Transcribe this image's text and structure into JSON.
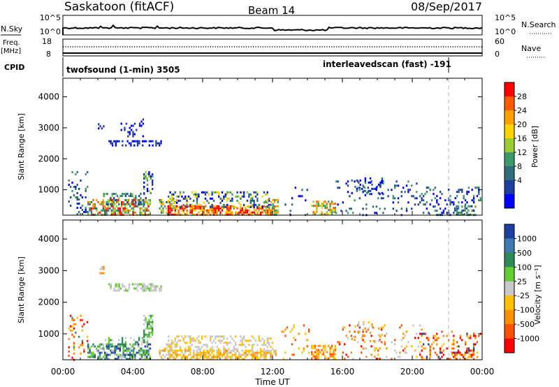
{
  "header": {
    "station": "Saskatoon (fitACF)",
    "beam": "Beam 14",
    "date": "08/Sep/2017"
  },
  "summary_panel": {
    "left_top_label": "N.Sky",
    "left_top_ticks": [
      "10^5",
      "10^0"
    ],
    "right_top_ticks": [
      "10^5",
      "10^0"
    ],
    "right_top_label": "N.Search",
    "freq_label_1": "Freq.",
    "freq_label_2": "[MHz]",
    "freq_ticks": [
      "18",
      "8"
    ],
    "nave_ticks": [
      "60",
      "0"
    ],
    "nave_label": "Nave",
    "cpid_label": "CPID",
    "cpid_1": "twofsound (1-min) 3505",
    "cpid_2": "interleavedscan (fast) -191"
  },
  "chart_data": [
    {
      "type": "heatmap",
      "name": "power",
      "ylabel": "Slant Range [km]",
      "xlabel": "",
      "y_ticks": [
        1000,
        2000,
        3000,
        4000
      ],
      "ylim": [
        180,
        4600
      ],
      "x_hours": [
        0,
        24
      ],
      "colorbar": {
        "label": "Power [dB]",
        "ticks": [
          "28",
          "24",
          "20",
          "16",
          "12",
          "8",
          "4"
        ],
        "colors": [
          "#ff0000",
          "#ff5a00",
          "#ffa000",
          "#ffd200",
          "#9acd32",
          "#3c9a6a",
          "#2e6e7a",
          "#1f3fa0",
          "#0000ff"
        ]
      },
      "patches": [
        {
          "t0": 0.3,
          "t1": 1.4,
          "r0": 200,
          "r1": 1600,
          "density": 0.18,
          "palette": [
            6,
            7,
            8,
            5
          ]
        },
        {
          "t0": 1.4,
          "t1": 5.0,
          "r0": 200,
          "r1": 700,
          "density": 0.6,
          "palette": [
            0,
            1,
            2,
            4,
            5,
            6
          ]
        },
        {
          "t0": 2.3,
          "t1": 4.8,
          "r0": 500,
          "r1": 900,
          "density": 0.35,
          "palette": [
            4,
            5,
            6,
            7
          ]
        },
        {
          "t0": 4.6,
          "t1": 5.1,
          "r0": 900,
          "r1": 1600,
          "density": 0.4,
          "palette": [
            4,
            5,
            7,
            8
          ]
        },
        {
          "t0": 2.0,
          "t1": 2.3,
          "r0": 2950,
          "r1": 3150,
          "density": 0.4,
          "palette": [
            7,
            8
          ]
        },
        {
          "t0": 2.6,
          "t1": 5.6,
          "r0": 2400,
          "r1": 2600,
          "density": 0.55,
          "palette": [
            7,
            8
          ]
        },
        {
          "t0": 3.3,
          "t1": 4.6,
          "r0": 2700,
          "r1": 3300,
          "density": 0.15,
          "palette": [
            7,
            8
          ]
        },
        {
          "t0": 5.5,
          "t1": 6.5,
          "r0": 200,
          "r1": 700,
          "density": 0.4,
          "palette": [
            2,
            4,
            5,
            6
          ]
        },
        {
          "t0": 6.0,
          "t1": 12.2,
          "r0": 200,
          "r1": 500,
          "density": 0.65,
          "palette": [
            0,
            0,
            1,
            2,
            3
          ]
        },
        {
          "t0": 6.0,
          "t1": 12.0,
          "r0": 450,
          "r1": 950,
          "density": 0.35,
          "palette": [
            4,
            5,
            6,
            7,
            8,
            3
          ]
        },
        {
          "t0": 11.5,
          "t1": 12.3,
          "r0": 200,
          "r1": 700,
          "density": 0.4,
          "palette": [
            2,
            4,
            5
          ]
        },
        {
          "t0": 12.5,
          "t1": 14.2,
          "r0": 200,
          "r1": 1300,
          "density": 0.06,
          "palette": [
            7,
            8,
            6
          ]
        },
        {
          "t0": 14.2,
          "t1": 15.6,
          "r0": 200,
          "r1": 650,
          "density": 0.55,
          "palette": [
            1,
            2,
            3,
            4,
            5
          ]
        },
        {
          "t0": 15.6,
          "t1": 20.5,
          "r0": 200,
          "r1": 1300,
          "density": 0.1,
          "palette": [
            6,
            7,
            8,
            5
          ]
        },
        {
          "t0": 16.5,
          "t1": 18.3,
          "r0": 800,
          "r1": 1400,
          "density": 0.2,
          "palette": [
            6,
            7,
            8
          ]
        },
        {
          "t0": 20.5,
          "t1": 23.9,
          "r0": 200,
          "r1": 1100,
          "density": 0.2,
          "palette": [
            6,
            7,
            8,
            5
          ]
        },
        {
          "t0": 22.4,
          "t1": 23.6,
          "r0": 200,
          "r1": 500,
          "density": 0.45,
          "palette": [
            4,
            5,
            6,
            7
          ]
        }
      ]
    },
    {
      "type": "heatmap",
      "name": "velocity",
      "ylabel": "Slant Range [km]",
      "xlabel": "Time UT",
      "y_ticks": [
        1000,
        2000,
        3000,
        4000
      ],
      "ylim": [
        180,
        4600
      ],
      "x_hours": [
        0,
        24
      ],
      "x_ticks": [
        "00:00",
        "04:00",
        "08:00",
        "12:00",
        "16:00",
        "20:00",
        "00:00"
      ],
      "colorbar": {
        "label": "Velocity [m s⁻¹]",
        "ticks": [
          "1000",
          "500",
          "100",
          "25",
          "-25",
          "-100",
          "-500",
          "-1000"
        ],
        "colors": [
          "#1f3fa0",
          "#3c7ab0",
          "#2e8b57",
          "#66cc33",
          "#c8c8c8",
          "#ffc000",
          "#ff9000",
          "#ff5000",
          "#ff0000"
        ]
      },
      "patches": [
        {
          "t0": 0.3,
          "t1": 1.4,
          "r0": 200,
          "r1": 1600,
          "density": 0.16,
          "palette": [
            5,
            6,
            7,
            2,
            8
          ]
        },
        {
          "t0": 1.4,
          "t1": 5.0,
          "r0": 200,
          "r1": 700,
          "density": 0.6,
          "palette": [
            0,
            1,
            2,
            3,
            3,
            4
          ]
        },
        {
          "t0": 2.3,
          "t1": 4.8,
          "r0": 500,
          "r1": 900,
          "density": 0.3,
          "palette": [
            3,
            4,
            2
          ]
        },
        {
          "t0": 4.6,
          "t1": 5.1,
          "r0": 900,
          "r1": 1600,
          "density": 0.4,
          "palette": [
            2,
            3,
            4
          ]
        },
        {
          "t0": 2.0,
          "t1": 2.3,
          "r0": 2950,
          "r1": 3150,
          "density": 0.4,
          "palette": [
            6,
            4
          ]
        },
        {
          "t0": 2.6,
          "t1": 5.6,
          "r0": 2400,
          "r1": 2600,
          "density": 0.55,
          "palette": [
            4,
            4,
            3
          ]
        },
        {
          "t0": 5.5,
          "t1": 6.5,
          "r0": 200,
          "r1": 700,
          "density": 0.4,
          "palette": [
            4,
            5,
            6
          ]
        },
        {
          "t0": 6.0,
          "t1": 12.2,
          "r0": 200,
          "r1": 500,
          "density": 0.6,
          "palette": [
            5,
            5,
            6,
            4
          ]
        },
        {
          "t0": 6.0,
          "t1": 12.0,
          "r0": 450,
          "r1": 950,
          "density": 0.35,
          "palette": [
            4,
            4,
            5
          ]
        },
        {
          "t0": 12.5,
          "t1": 14.2,
          "r0": 200,
          "r1": 1300,
          "density": 0.06,
          "palette": [
            5,
            6,
            7
          ]
        },
        {
          "t0": 14.2,
          "t1": 15.6,
          "r0": 200,
          "r1": 650,
          "density": 0.55,
          "palette": [
            5,
            6,
            7
          ]
        },
        {
          "t0": 15.6,
          "t1": 20.5,
          "r0": 200,
          "r1": 1300,
          "density": 0.1,
          "palette": [
            5,
            6,
            7,
            8,
            4
          ]
        },
        {
          "t0": 16.5,
          "t1": 18.3,
          "r0": 800,
          "r1": 1400,
          "density": 0.2,
          "palette": [
            5,
            6,
            4
          ]
        },
        {
          "t0": 20.5,
          "t1": 23.9,
          "r0": 200,
          "r1": 1100,
          "density": 0.2,
          "palette": [
            5,
            6,
            7,
            8,
            0
          ]
        },
        {
          "t0": 22.4,
          "t1": 23.6,
          "r0": 200,
          "r1": 500,
          "density": 0.45,
          "palette": [
            5,
            6,
            8,
            7
          ]
        }
      ]
    }
  ]
}
